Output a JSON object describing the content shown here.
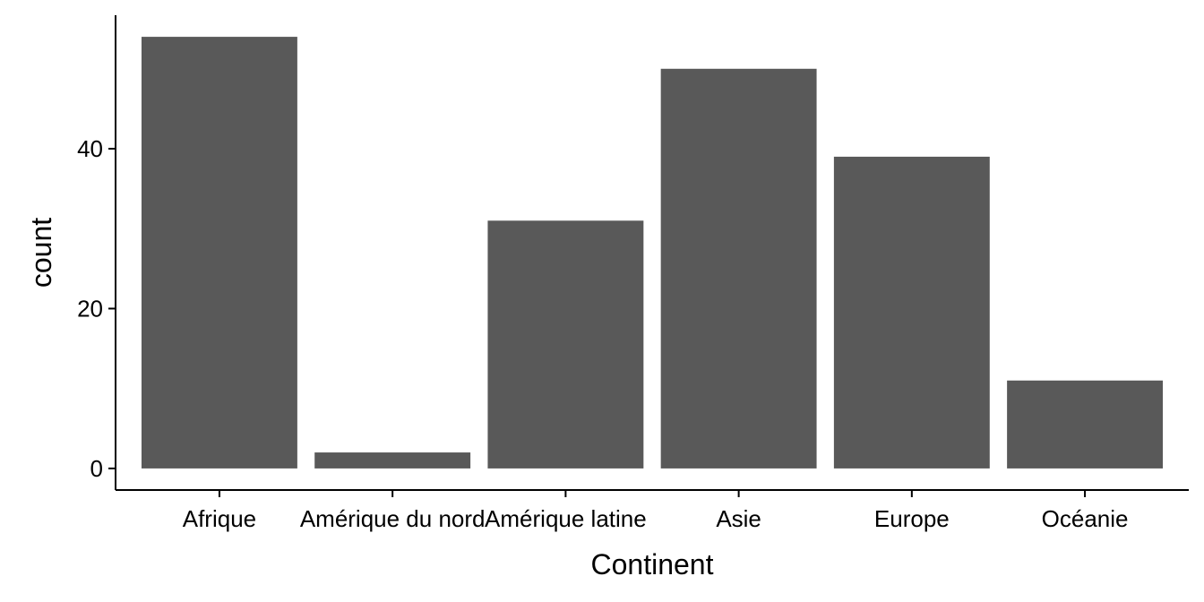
{
  "chart_data": {
    "type": "bar",
    "categories": [
      "Afrique",
      "Amérique du nord",
      "Amérique latine",
      "Asie",
      "Europe",
      "Océanie"
    ],
    "values": [
      54,
      2,
      31,
      50,
      39,
      11
    ],
    "xlabel": "Continent",
    "ylabel": "count",
    "yticks": [
      0,
      20,
      40
    ],
    "ylim": [
      -2.7,
      56.7
    ],
    "bar_color": "#595959",
    "grid": false,
    "legend": "none"
  }
}
